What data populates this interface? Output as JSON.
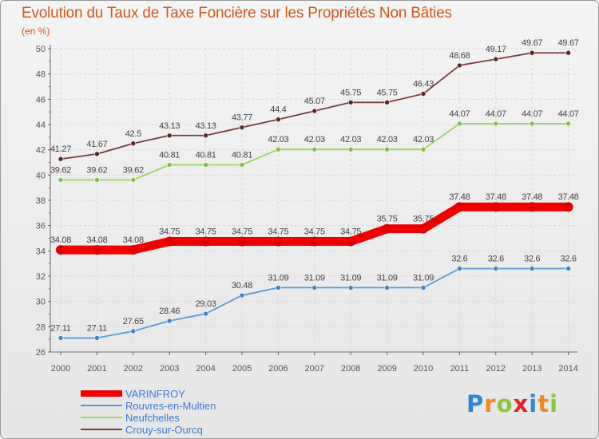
{
  "title": "Evolution du Taux de Taxe Foncière sur les Propriétés Non Bâties",
  "unit_label": "(en %)",
  "logo": {
    "letters": [
      "P",
      "r",
      "o",
      "x",
      "i",
      "t",
      "i"
    ],
    "colors": [
      "#2d86d6",
      "#f08a1c",
      "#8cc63f",
      "#e0242a",
      "#2d86d6",
      "#f08a1c",
      "#8cc63f"
    ]
  },
  "chart_data": {
    "type": "line",
    "title": "Evolution du Taux de Taxe Foncière sur les Propriétés Non Bâties",
    "ylabel": "(en %)",
    "xlabel": "",
    "x": [
      "2000",
      "2001",
      "2002",
      "2003",
      "2004",
      "2005",
      "2006",
      "2007",
      "2008",
      "2009",
      "2010",
      "2011",
      "2012",
      "2013",
      "2014"
    ],
    "ylim": [
      26,
      50
    ],
    "yticks": [
      "26",
      "28",
      "30",
      "32",
      "34",
      "36",
      "38",
      "40",
      "42",
      "44",
      "46",
      "48",
      "50"
    ],
    "series": [
      {
        "name": "VARINFROY",
        "color": "#f20000",
        "values": [
          34.08,
          34.08,
          34.08,
          34.75,
          34.75,
          34.75,
          34.75,
          34.75,
          34.75,
          35.75,
          35.75,
          37.48,
          37.48,
          37.48,
          37.48
        ],
        "labels": [
          "34.08",
          "34.08",
          "34.08",
          "34.75",
          "34.75",
          "34.75",
          "34.75",
          "34.75",
          "34.75",
          "35.75",
          "35.75",
          "37.48",
          "37.48",
          "37.48",
          "37.48"
        ]
      },
      {
        "name": "Rouvres-en-Multien",
        "color": "#5b9bd5",
        "values": [
          27.11,
          27.11,
          27.65,
          28.46,
          29.03,
          30.48,
          31.09,
          31.09,
          31.09,
          31.09,
          31.09,
          32.6,
          32.6,
          32.6,
          32.6
        ],
        "labels": [
          "27.11",
          "27.11",
          "27.65",
          "28.46",
          "29.03",
          "30.48",
          "31.09",
          "31.09",
          "31.09",
          "31.09",
          "31.09",
          "32.6",
          "32.6",
          "32.6",
          "32.6"
        ]
      },
      {
        "name": "Neufchelles",
        "color": "#9bd55f",
        "values": [
          39.62,
          39.62,
          39.62,
          40.81,
          40.81,
          40.81,
          42.03,
          42.03,
          42.03,
          42.03,
          42.03,
          44.07,
          44.07,
          44.07,
          44.07
        ],
        "labels": [
          "39.62",
          "39.62",
          "39.62",
          "40.81",
          "40.81",
          "40.81",
          "42.03",
          "42.03",
          "42.03",
          "42.03",
          "42.03",
          "44.07",
          "44.07",
          "44.07",
          "44.07"
        ]
      },
      {
        "name": "Crouy-sur-Ourcq",
        "color": "#7a3b3b",
        "values": [
          41.27,
          41.67,
          42.5,
          43.13,
          43.13,
          43.77,
          44.4,
          45.07,
          45.75,
          45.75,
          46.43,
          48.68,
          49.17,
          49.67,
          49.67
        ],
        "labels": [
          "41.27",
          "41.67",
          "42.5",
          "43.13",
          "43.13",
          "43.77",
          "44.4",
          "45.07",
          "45.75",
          "45.75",
          "46.43",
          "48.68",
          "49.17",
          "49.67",
          "49.67"
        ]
      }
    ],
    "grid": true,
    "legend_position": "bottom-left"
  }
}
